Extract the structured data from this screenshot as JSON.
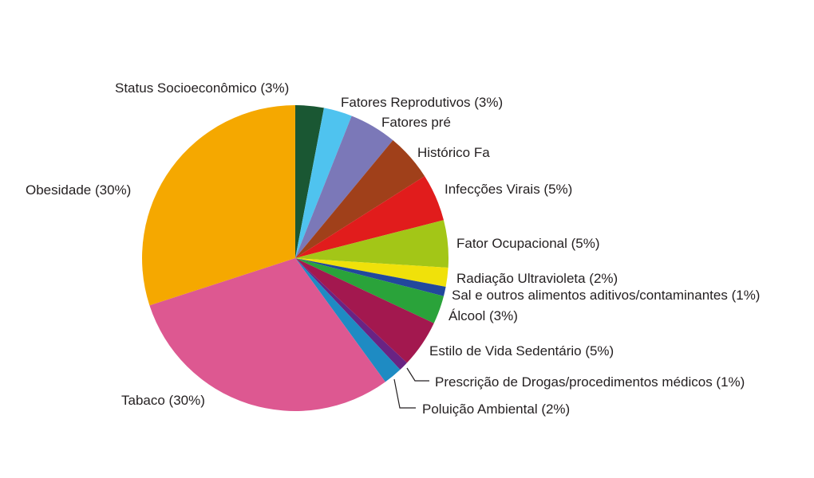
{
  "chart_data": {
    "type": "pie",
    "title": "",
    "start_angle_deg": 0,
    "direction": "clockwise",
    "slices": [
      {
        "label": "Status Socioeconômico (3%)",
        "value": 3,
        "color": "#1a5733"
      },
      {
        "label": "Fatores Reprodutivos (3%)",
        "value": 3,
        "color": "#4fc3ef"
      },
      {
        "label": "Fatores pré",
        "value": 5,
        "color": "#7b78b8"
      },
      {
        "label": "Histórico Fa",
        "value": 5,
        "color": "#a0401a"
      },
      {
        "label": "Infecções Virais (5%)",
        "value": 5,
        "color": "#e11c1c"
      },
      {
        "label": "Fator Ocupacional (5%)",
        "value": 5,
        "color": "#a3c617"
      },
      {
        "label": "Radiação Ultravioleta (2%)",
        "value": 2,
        "color": "#f0e10a"
      },
      {
        "label": "Sal e outros alimentos aditivos/contaminantes (1%)",
        "value": 1,
        "color": "#22489c"
      },
      {
        "label": "Álcool (3%)",
        "value": 3,
        "color": "#2aa33a"
      },
      {
        "label": "Estilo de Vida Sedentário (5%)",
        "value": 5,
        "color": "#a3184f"
      },
      {
        "label": "Prescrição de Drogas/procedimentos médicos (1%)",
        "value": 1,
        "color": "#6a2383"
      },
      {
        "label": "Poluição Ambiental (2%)",
        "value": 2,
        "color": "#1e8bc3"
      },
      {
        "label": "Tabaco (30%)",
        "value": 30,
        "color": "#dd5891"
      },
      {
        "label": "Obesidade (30%)",
        "value": 30,
        "color": "#f5a800"
      }
    ]
  }
}
